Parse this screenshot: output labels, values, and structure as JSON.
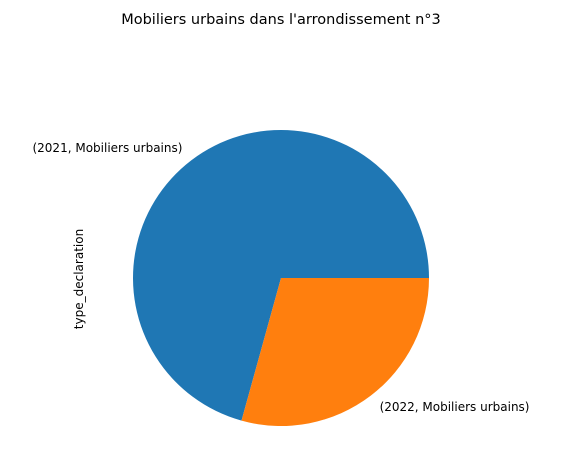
{
  "chart_data": {
    "type": "pie",
    "title": "Mobiliers urbains dans l'arrondissement n°3",
    "ylabel": "type_declaration",
    "categories": [
      "(2021, Mobiliers urbains)",
      "(2022, Mobiliers urbains)"
    ],
    "values": [
      70.7,
      29.3
    ],
    "colors": [
      "#1f77b4",
      "#ff7f0e"
    ],
    "start_angle_deg": 0,
    "direction": "counterclockwise",
    "legend": "none"
  }
}
